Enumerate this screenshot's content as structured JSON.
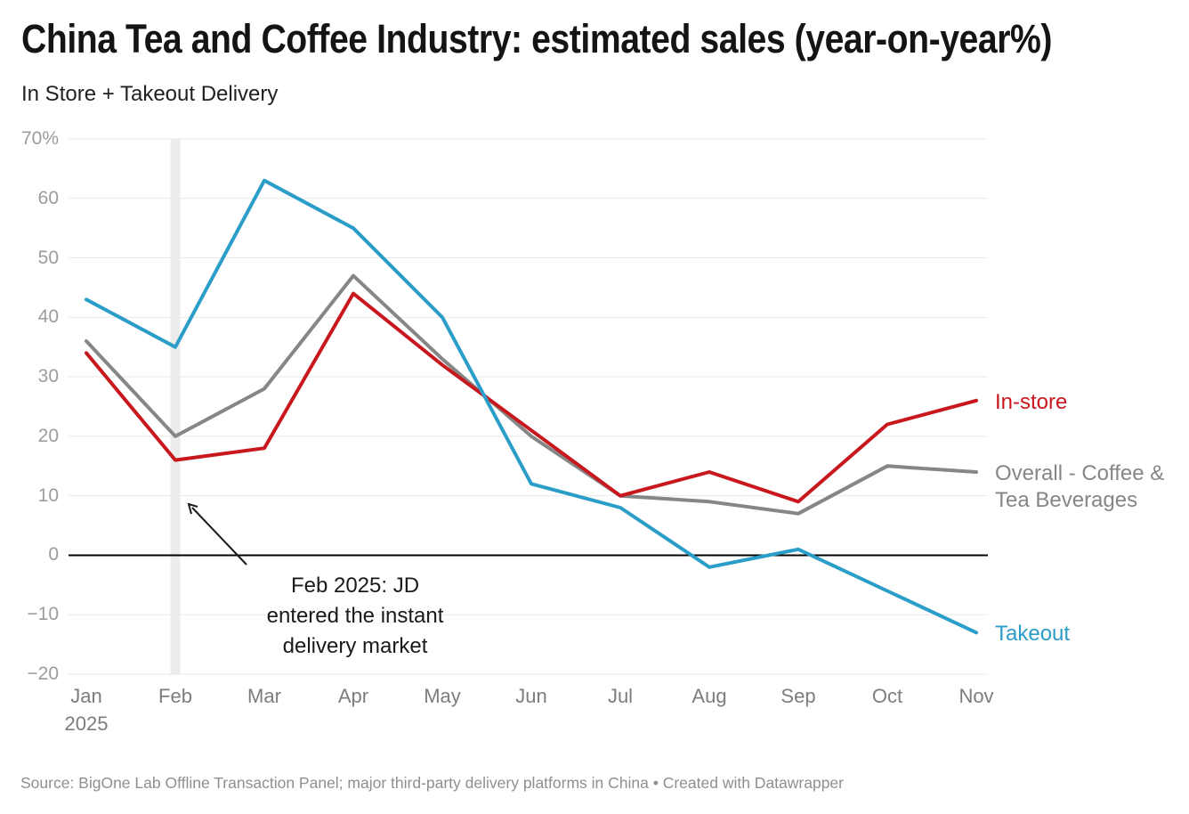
{
  "footer": {
    "source": "Source: BigOne Lab Offline Transaction Panel; major third-party delivery platforms in China • Created with Datawrapper"
  },
  "chart_data": {
    "type": "line",
    "title": "China Tea and Coffee Industry: estimated sales (year-on-year%)",
    "subtitle": "In Store + Takeout Delivery",
    "categories": [
      "Jan",
      "Feb",
      "Mar",
      "Apr",
      "May",
      "Jun",
      "Jul",
      "Aug",
      "Sep",
      "Oct",
      "Nov"
    ],
    "x_year_label": "2025",
    "series": [
      {
        "name": "Overall - Coffee & Tea Beverages",
        "label_lines": [
          "Overall - Coffee &",
          "Tea Beverages"
        ],
        "color": "#868686",
        "values": [
          36,
          20,
          28,
          47,
          33,
          20,
          10,
          9,
          7,
          15,
          14
        ]
      },
      {
        "name": "In-store",
        "label_lines": [
          "In-store"
        ],
        "color": "#c8181e",
        "values": [
          34,
          16,
          18,
          44,
          32,
          21,
          10,
          14,
          9,
          22,
          26
        ]
      },
      {
        "name": "Takeout",
        "label_lines": [
          "Takeout"
        ],
        "color": "#2a9dc8",
        "values": [
          43,
          35,
          63,
          55,
          40,
          12,
          8,
          -2,
          1,
          -6,
          -13
        ]
      }
    ],
    "ylim": [
      -20,
      70
    ],
    "yticks": [
      70,
      60,
      50,
      40,
      30,
      20,
      10,
      0,
      -10,
      -20
    ],
    "ytick_labels": [
      "70%",
      "60",
      "50",
      "40",
      "30",
      "20",
      "10",
      "0",
      "−10",
      "−20"
    ],
    "grid": true,
    "legend_position": "right-of-line-ends",
    "highlight_band_category": "Feb",
    "annotation": {
      "lines": [
        "Feb 2025: JD",
        "entered the instant",
        "delivery market"
      ]
    }
  }
}
